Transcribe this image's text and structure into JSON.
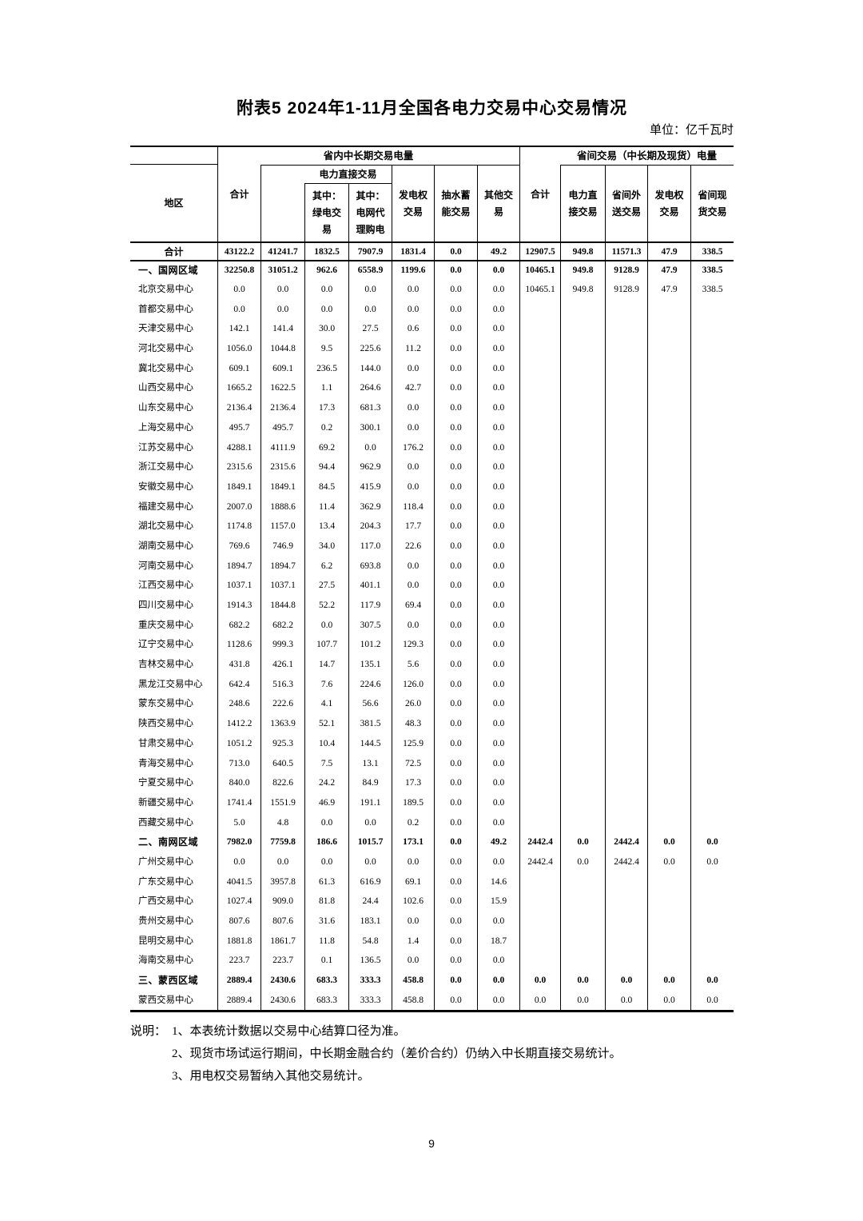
{
  "page": {
    "title": "附表5  2024年1-11月全国各电力交易中心交易情况",
    "unit_label": "单位：亿千瓦时",
    "page_number": "9"
  },
  "table": {
    "header": {
      "region": "地区",
      "total": "合计",
      "group_in_province": "省内中长期交易电量",
      "group_inter_province": "省间交易（中长期及现货）电量",
      "direct_trading": "电力直接交易",
      "green_sub": "其中：\n绿电交\n易",
      "grid_agent_sub": "其中：\n电网代\n理购电",
      "generation_rights": "发电权\n交易",
      "pumped_storage": "抽水蓄\n能交易",
      "other_trading": "其他交\n易",
      "inter_direct": "电力直\n接交易",
      "inter_outbound": "省间外\n送交易",
      "inter_generation_rights": "发电权\n交易",
      "inter_spot": "省间现\n货交易"
    },
    "rows": [
      {
        "label": "合计",
        "type": "total",
        "values": [
          "43122.2",
          "41241.7",
          "1832.5",
          "7907.9",
          "1831.4",
          "0.0",
          "49.2",
          "12907.5",
          "949.8",
          "11571.3",
          "47.9",
          "338.5"
        ]
      },
      {
        "label": "一、国网区域",
        "type": "section",
        "values": [
          "32250.8",
          "31051.2",
          "962.6",
          "6558.9",
          "1199.6",
          "0.0",
          "0.0",
          "10465.1",
          "949.8",
          "9128.9",
          "47.9",
          "338.5"
        ]
      },
      {
        "label": "北京交易中心",
        "type": "",
        "values": [
          "0.0",
          "0.0",
          "0.0",
          "0.0",
          "0.0",
          "0.0",
          "0.0",
          "10465.1",
          "949.8",
          "9128.9",
          "47.9",
          "338.5"
        ]
      },
      {
        "label": "首都交易中心",
        "type": "",
        "values": [
          "0.0",
          "0.0",
          "0.0",
          "0.0",
          "0.0",
          "0.0",
          "0.0",
          "",
          "",
          "",
          "",
          ""
        ]
      },
      {
        "label": "天津交易中心",
        "type": "",
        "values": [
          "142.1",
          "141.4",
          "30.0",
          "27.5",
          "0.6",
          "0.0",
          "0.0",
          "",
          "",
          "",
          "",
          ""
        ]
      },
      {
        "label": "河北交易中心",
        "type": "",
        "values": [
          "1056.0",
          "1044.8",
          "9.5",
          "225.6",
          "11.2",
          "0.0",
          "0.0",
          "",
          "",
          "",
          "",
          ""
        ]
      },
      {
        "label": "冀北交易中心",
        "type": "",
        "values": [
          "609.1",
          "609.1",
          "236.5",
          "144.0",
          "0.0",
          "0.0",
          "0.0",
          "",
          "",
          "",
          "",
          ""
        ]
      },
      {
        "label": "山西交易中心",
        "type": "",
        "values": [
          "1665.2",
          "1622.5",
          "1.1",
          "264.6",
          "42.7",
          "0.0",
          "0.0",
          "",
          "",
          "",
          "",
          ""
        ]
      },
      {
        "label": "山东交易中心",
        "type": "",
        "values": [
          "2136.4",
          "2136.4",
          "17.3",
          "681.3",
          "0.0",
          "0.0",
          "0.0",
          "",
          "",
          "",
          "",
          ""
        ]
      },
      {
        "label": "上海交易中心",
        "type": "",
        "values": [
          "495.7",
          "495.7",
          "0.2",
          "300.1",
          "0.0",
          "0.0",
          "0.0",
          "",
          "",
          "",
          "",
          ""
        ]
      },
      {
        "label": "江苏交易中心",
        "type": "",
        "values": [
          "4288.1",
          "4111.9",
          "69.2",
          "0.0",
          "176.2",
          "0.0",
          "0.0",
          "",
          "",
          "",
          "",
          ""
        ]
      },
      {
        "label": "浙江交易中心",
        "type": "",
        "values": [
          "2315.6",
          "2315.6",
          "94.4",
          "962.9",
          "0.0",
          "0.0",
          "0.0",
          "",
          "",
          "",
          "",
          ""
        ]
      },
      {
        "label": "安徽交易中心",
        "type": "",
        "values": [
          "1849.1",
          "1849.1",
          "84.5",
          "415.9",
          "0.0",
          "0.0",
          "0.0",
          "",
          "",
          "",
          "",
          ""
        ]
      },
      {
        "label": "福建交易中心",
        "type": "",
        "values": [
          "2007.0",
          "1888.6",
          "11.4",
          "362.9",
          "118.4",
          "0.0",
          "0.0",
          "",
          "",
          "",
          "",
          ""
        ]
      },
      {
        "label": "湖北交易中心",
        "type": "",
        "values": [
          "1174.8",
          "1157.0",
          "13.4",
          "204.3",
          "17.7",
          "0.0",
          "0.0",
          "",
          "",
          "",
          "",
          ""
        ]
      },
      {
        "label": "湖南交易中心",
        "type": "",
        "values": [
          "769.6",
          "746.9",
          "34.0",
          "117.0",
          "22.6",
          "0.0",
          "0.0",
          "",
          "",
          "",
          "",
          ""
        ]
      },
      {
        "label": "河南交易中心",
        "type": "",
        "values": [
          "1894.7",
          "1894.7",
          "6.2",
          "693.8",
          "0.0",
          "0.0",
          "0.0",
          "",
          "",
          "",
          "",
          ""
        ]
      },
      {
        "label": "江西交易中心",
        "type": "",
        "values": [
          "1037.1",
          "1037.1",
          "27.5",
          "401.1",
          "0.0",
          "0.0",
          "0.0",
          "",
          "",
          "",
          "",
          ""
        ]
      },
      {
        "label": "四川交易中心",
        "type": "",
        "values": [
          "1914.3",
          "1844.8",
          "52.2",
          "117.9",
          "69.4",
          "0.0",
          "0.0",
          "",
          "",
          "",
          "",
          ""
        ]
      },
      {
        "label": "重庆交易中心",
        "type": "",
        "values": [
          "682.2",
          "682.2",
          "0.0",
          "307.5",
          "0.0",
          "0.0",
          "0.0",
          "",
          "",
          "",
          "",
          ""
        ]
      },
      {
        "label": "辽宁交易中心",
        "type": "",
        "values": [
          "1128.6",
          "999.3",
          "107.7",
          "101.2",
          "129.3",
          "0.0",
          "0.0",
          "",
          "",
          "",
          "",
          ""
        ]
      },
      {
        "label": "吉林交易中心",
        "type": "",
        "values": [
          "431.8",
          "426.1",
          "14.7",
          "135.1",
          "5.6",
          "0.0",
          "0.0",
          "",
          "",
          "",
          "",
          ""
        ]
      },
      {
        "label": "黑龙江交易中心",
        "type": "",
        "values": [
          "642.4",
          "516.3",
          "7.6",
          "224.6",
          "126.0",
          "0.0",
          "0.0",
          "",
          "",
          "",
          "",
          ""
        ]
      },
      {
        "label": "蒙东交易中心",
        "type": "",
        "values": [
          "248.6",
          "222.6",
          "4.1",
          "56.6",
          "26.0",
          "0.0",
          "0.0",
          "",
          "",
          "",
          "",
          ""
        ]
      },
      {
        "label": "陕西交易中心",
        "type": "",
        "values": [
          "1412.2",
          "1363.9",
          "52.1",
          "381.5",
          "48.3",
          "0.0",
          "0.0",
          "",
          "",
          "",
          "",
          ""
        ]
      },
      {
        "label": "甘肃交易中心",
        "type": "",
        "values": [
          "1051.2",
          "925.3",
          "10.4",
          "144.5",
          "125.9",
          "0.0",
          "0.0",
          "",
          "",
          "",
          "",
          ""
        ]
      },
      {
        "label": "青海交易中心",
        "type": "",
        "values": [
          "713.0",
          "640.5",
          "7.5",
          "13.1",
          "72.5",
          "0.0",
          "0.0",
          "",
          "",
          "",
          "",
          ""
        ]
      },
      {
        "label": "宁夏交易中心",
        "type": "",
        "values": [
          "840.0",
          "822.6",
          "24.2",
          "84.9",
          "17.3",
          "0.0",
          "0.0",
          "",
          "",
          "",
          "",
          ""
        ]
      },
      {
        "label": "新疆交易中心",
        "type": "",
        "values": [
          "1741.4",
          "1551.9",
          "46.9",
          "191.1",
          "189.5",
          "0.0",
          "0.0",
          "",
          "",
          "",
          "",
          ""
        ]
      },
      {
        "label": "西藏交易中心",
        "type": "",
        "values": [
          "5.0",
          "4.8",
          "0.0",
          "0.0",
          "0.2",
          "0.0",
          "0.0",
          "",
          "",
          "",
          "",
          ""
        ]
      },
      {
        "label": "二、南网区域",
        "type": "section",
        "values": [
          "7982.0",
          "7759.8",
          "186.6",
          "1015.7",
          "173.1",
          "0.0",
          "49.2",
          "2442.4",
          "0.0",
          "2442.4",
          "0.0",
          "0.0"
        ]
      },
      {
        "label": "广州交易中心",
        "type": "",
        "values": [
          "0.0",
          "0.0",
          "0.0",
          "0.0",
          "0.0",
          "0.0",
          "0.0",
          "2442.4",
          "0.0",
          "2442.4",
          "0.0",
          "0.0"
        ]
      },
      {
        "label": "广东交易中心",
        "type": "",
        "values": [
          "4041.5",
          "3957.8",
          "61.3",
          "616.9",
          "69.1",
          "0.0",
          "14.6",
          "",
          "",
          "",
          "",
          ""
        ]
      },
      {
        "label": "广西交易中心",
        "type": "",
        "values": [
          "1027.4",
          "909.0",
          "81.8",
          "24.4",
          "102.6",
          "0.0",
          "15.9",
          "",
          "",
          "",
          "",
          ""
        ]
      },
      {
        "label": "贵州交易中心",
        "type": "",
        "values": [
          "807.6",
          "807.6",
          "31.6",
          "183.1",
          "0.0",
          "0.0",
          "0.0",
          "",
          "",
          "",
          "",
          ""
        ]
      },
      {
        "label": "昆明交易中心",
        "type": "",
        "values": [
          "1881.8",
          "1861.7",
          "11.8",
          "54.8",
          "1.4",
          "0.0",
          "18.7",
          "",
          "",
          "",
          "",
          ""
        ]
      },
      {
        "label": "海南交易中心",
        "type": "",
        "values": [
          "223.7",
          "223.7",
          "0.1",
          "136.5",
          "0.0",
          "0.0",
          "0.0",
          "",
          "",
          "",
          "",
          ""
        ]
      },
      {
        "label": "三、蒙西区域",
        "type": "section",
        "values": [
          "2889.4",
          "2430.6",
          "683.3",
          "333.3",
          "458.8",
          "0.0",
          "0.0",
          "0.0",
          "0.0",
          "0.0",
          "0.0",
          "0.0"
        ]
      },
      {
        "label": "蒙西交易中心",
        "type": "",
        "values": [
          "2889.4",
          "2430.6",
          "683.3",
          "333.3",
          "458.8",
          "0.0",
          "0.0",
          "0.0",
          "0.0",
          "0.0",
          "0.0",
          "0.0"
        ]
      }
    ]
  },
  "notes": {
    "prefix": "说明：",
    "items": [
      "1、本表统计数据以交易中心结算口径为准。",
      "2、现货市场试运行期间，中长期金融合约（差价合约）仍纳入中长期直接交易统计。",
      "3、用电权交易暂纳入其他交易统计。"
    ]
  }
}
